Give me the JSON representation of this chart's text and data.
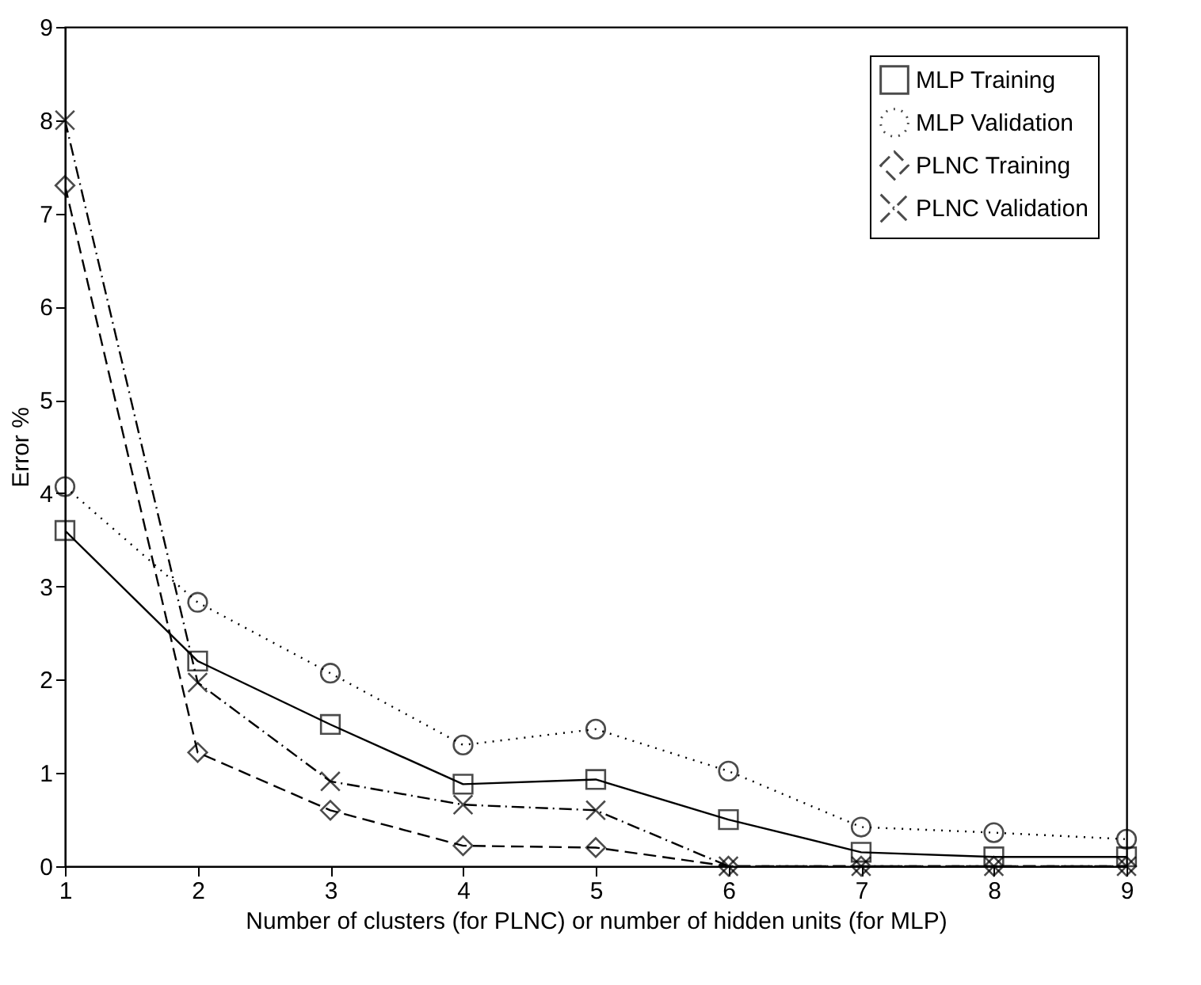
{
  "chart_data": {
    "type": "line",
    "xlabel": "Number of clusters (for PLNC) or number of hidden units (for MLP)",
    "ylabel": "Error %",
    "x": [
      1,
      2,
      3,
      4,
      5,
      6,
      7,
      8,
      9
    ],
    "xlim": [
      1,
      9
    ],
    "xticks": [
      1,
      2,
      3,
      4,
      5,
      6,
      7,
      8,
      9
    ],
    "ylim": [
      0,
      9
    ],
    "yticks": [
      0,
      1,
      2,
      3,
      4,
      5,
      6,
      7,
      8,
      9
    ],
    "grid": false,
    "legend": "top right",
    "series": [
      {
        "name": "MLP Training",
        "color": "#000000",
        "marker": "square",
        "line_style": "solid",
        "values": [
          3.6,
          2.2,
          1.52,
          0.88,
          0.93,
          0.5,
          0.15,
          0.1,
          0.1
        ]
      },
      {
        "name": "MLP Validation",
        "color": "#000000",
        "marker": "circle",
        "line_style": "dotted",
        "values": [
          4.07,
          2.83,
          2.07,
          1.3,
          1.47,
          1.02,
          0.42,
          0.36,
          0.29
        ]
      },
      {
        "name": "PLNC Training",
        "color": "#000000",
        "marker": "diamond",
        "line_style": "dashed",
        "values": [
          7.3,
          1.22,
          0.6,
          0.22,
          0.2,
          0,
          0,
          0,
          0
        ]
      },
      {
        "name": "PLNC Validation",
        "color": "#000000",
        "marker": "cross",
        "line_style": "dashdot",
        "values": [
          8.0,
          1.97,
          0.91,
          0.66,
          0.6,
          0,
          0,
          0,
          0
        ]
      }
    ]
  }
}
